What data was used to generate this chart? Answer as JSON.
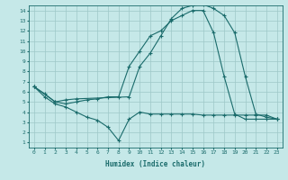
{
  "xlabel": "Humidex (Indice chaleur)",
  "bg_color": "#c5e8e8",
  "grid_color": "#9ec8c8",
  "line_color": "#1a6b6b",
  "xlim": [
    -0.5,
    23.5
  ],
  "ylim": [
    0.5,
    14.5
  ],
  "xticks": [
    0,
    1,
    2,
    3,
    4,
    5,
    6,
    7,
    8,
    9,
    10,
    11,
    12,
    13,
    14,
    15,
    16,
    17,
    18,
    19,
    20,
    21,
    22,
    23
  ],
  "yticks": [
    1,
    2,
    3,
    4,
    5,
    6,
    7,
    8,
    9,
    10,
    11,
    12,
    13,
    14
  ],
  "line1_x": [
    0,
    1,
    2,
    3,
    4,
    9,
    10,
    11,
    12,
    13,
    14,
    15,
    16,
    17,
    18,
    19,
    20,
    21,
    22,
    23
  ],
  "line1_y": [
    6.5,
    5.8,
    5.0,
    5.2,
    5.3,
    5.5,
    8.5,
    9.8,
    11.5,
    13.2,
    14.2,
    14.5,
    14.6,
    14.2,
    13.5,
    11.8,
    7.5,
    3.8,
    3.5,
    3.3
  ],
  "line2_x": [
    0,
    2,
    3,
    4,
    5,
    6,
    7,
    8,
    9,
    10,
    11,
    12,
    13,
    14,
    15,
    16,
    17,
    18,
    19,
    20,
    21,
    22,
    23
  ],
  "line2_y": [
    6.5,
    5.0,
    4.8,
    5.0,
    5.2,
    5.3,
    5.5,
    5.5,
    8.5,
    10.0,
    11.5,
    12.0,
    13.0,
    13.5,
    14.0,
    14.0,
    11.8,
    7.5,
    3.8,
    3.3,
    3.3,
    3.3,
    3.3
  ],
  "line3_x": [
    0,
    1,
    2,
    3,
    4,
    5,
    6,
    7,
    8,
    9,
    10,
    11,
    12,
    13,
    14,
    15,
    16,
    17,
    18,
    19,
    20,
    21,
    22,
    23
  ],
  "line3_y": [
    6.5,
    5.5,
    4.8,
    4.5,
    4.0,
    3.5,
    3.2,
    2.5,
    1.2,
    3.3,
    4.0,
    3.8,
    3.8,
    3.8,
    3.8,
    3.8,
    3.7,
    3.7,
    3.7,
    3.7,
    3.7,
    3.7,
    3.7,
    3.3
  ]
}
